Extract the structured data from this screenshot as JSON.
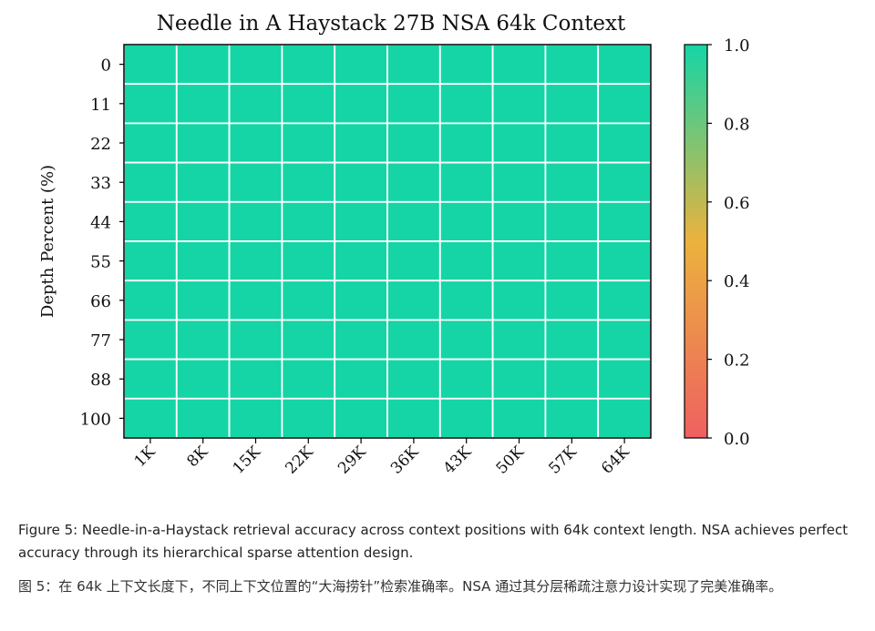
{
  "chart_data": {
    "type": "heatmap",
    "title": "Needle in A Haystack 27B NSA 64k Context",
    "xlabel": "",
    "ylabel": "Depth Percent (%)",
    "x_categories": [
      "1K",
      "8K",
      "15K",
      "22K",
      "29K",
      "36K",
      "43K",
      "50K",
      "57K",
      "64K"
    ],
    "y_categories": [
      "0",
      "11",
      "22",
      "33",
      "44",
      "55",
      "66",
      "77",
      "88",
      "100"
    ],
    "values": [
      [
        1,
        1,
        1,
        1,
        1,
        1,
        1,
        1,
        1,
        1
      ],
      [
        1,
        1,
        1,
        1,
        1,
        1,
        1,
        1,
        1,
        1
      ],
      [
        1,
        1,
        1,
        1,
        1,
        1,
        1,
        1,
        1,
        1
      ],
      [
        1,
        1,
        1,
        1,
        1,
        1,
        1,
        1,
        1,
        1
      ],
      [
        1,
        1,
        1,
        1,
        1,
        1,
        1,
        1,
        1,
        1
      ],
      [
        1,
        1,
        1,
        1,
        1,
        1,
        1,
        1,
        1,
        1
      ],
      [
        1,
        1,
        1,
        1,
        1,
        1,
        1,
        1,
        1,
        1
      ],
      [
        1,
        1,
        1,
        1,
        1,
        1,
        1,
        1,
        1,
        1
      ],
      [
        1,
        1,
        1,
        1,
        1,
        1,
        1,
        1,
        1,
        1
      ],
      [
        1,
        1,
        1,
        1,
        1,
        1,
        1,
        1,
        1,
        1
      ]
    ],
    "colorbar": {
      "range": [
        0.0,
        1.0
      ],
      "ticks": [
        "0.0",
        "0.2",
        "0.4",
        "0.6",
        "0.8",
        "1.0"
      ],
      "colors": [
        "#EE6060",
        "#EBB23D",
        "#15D5A6"
      ]
    },
    "grid": true,
    "cell_color": "#15D5A6"
  },
  "caption": {
    "en": "Figure 5: Needle-in-a-Haystack retrieval accuracy across context positions with 64k context length. NSA achieves perfect accuracy through its hierarchical sparse attention design.",
    "zh": "图 5：在 64k 上下文长度下，不同上下文位置的“大海捞针”检索准确率。NSA 通过其分层稀疏注意力设计实现了完美准确率。"
  }
}
